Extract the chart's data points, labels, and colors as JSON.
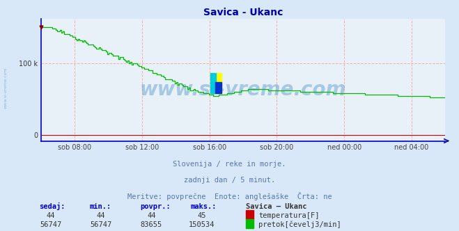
{
  "title": "Savica - Ukanc",
  "bg_color": "#d8e8f8",
  "plot_bg_color": "#e8f0f8",
  "grid_color": "#ffaaaa",
  "axis_color": "#0000cc",
  "title_color": "#0000aa",
  "x_tick_labels": [
    "sob 08:00",
    "sob 12:00",
    "sob 16:00",
    "sob 20:00",
    "ned 00:00",
    "ned 04:00"
  ],
  "x_tick_positions": [
    0.083,
    0.25,
    0.417,
    0.583,
    0.75,
    0.917
  ],
  "ytick_labels": [
    "0",
    "100 k"
  ],
  "ytick_positions": [
    0,
    100000
  ],
  "ymax": 162000,
  "ymin": -8000,
  "watermark": "www.si-vreme.com",
  "subtitle1": "Slovenija / reke in morje.",
  "subtitle2": "zadnji dan / 5 minut.",
  "subtitle3": "Meritve: povprečne  Enote: anglešaške  Črta: ne",
  "legend_title": "Savica – Ukanc",
  "legend_row1_label": "temperatura[F]",
  "legend_row1_color": "#cc0000",
  "legend_row2_label": "pretok[čevelj3/min]",
  "legend_row2_color": "#00bb00",
  "table_headers": [
    "sedaj:",
    "min.:",
    "povpr.:",
    "maks.:"
  ],
  "table_row1": [
    "44",
    "44",
    "44",
    "45"
  ],
  "table_row2": [
    "56747",
    "56747",
    "83655",
    "150534"
  ],
  "watermark_color": "#5599cc",
  "watermark_alpha": 0.45
}
